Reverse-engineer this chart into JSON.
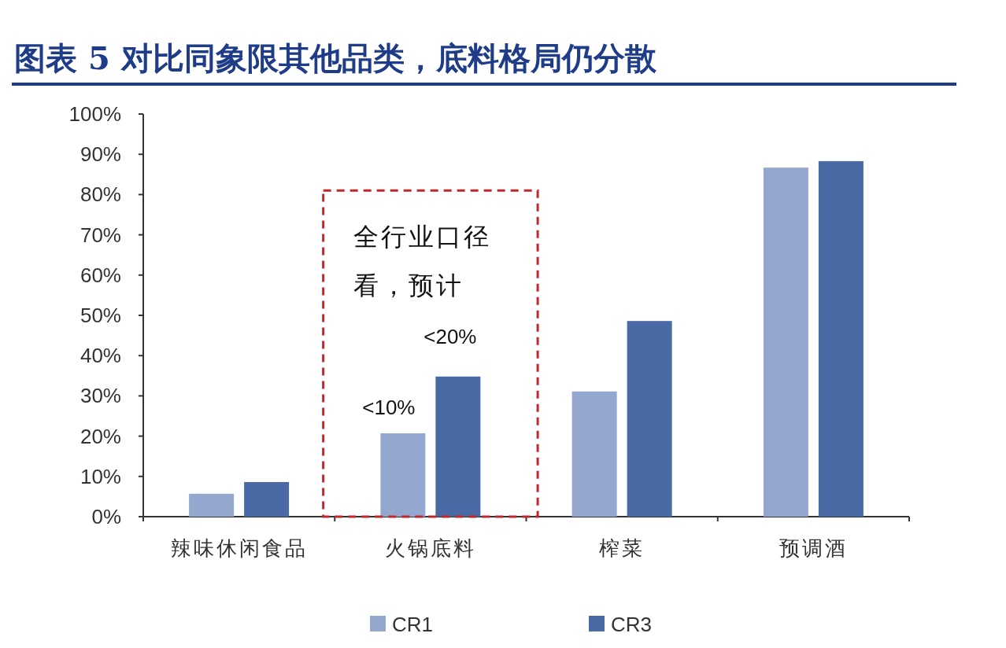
{
  "chart_data": {
    "type": "bar",
    "title": "图表 5   对比同象限其他品类，底料格局仍分散",
    "categories": [
      "辣味休闲食品",
      "火锅底料",
      "榨菜",
      "预调酒"
    ],
    "series": [
      {
        "name": "CR1",
        "color": "#94a8cf",
        "values": [
          5.7,
          20.7,
          31.1,
          86.7
        ]
      },
      {
        "name": "CR3",
        "color": "#4a6aa5",
        "values": [
          8.6,
          34.8,
          48.6,
          88.3
        ]
      }
    ],
    "ylim": [
      0,
      100
    ],
    "yticks": [
      {
        "value": 0,
        "label": "0%"
      },
      {
        "value": 10,
        "label": "10%"
      },
      {
        "value": 20,
        "label": "20%"
      },
      {
        "value": 30,
        "label": "30%"
      },
      {
        "value": 40,
        "label": "40%"
      },
      {
        "value": 50,
        "label": "50%"
      },
      {
        "value": 60,
        "label": "60%"
      },
      {
        "value": 70,
        "label": "70%"
      },
      {
        "value": 80,
        "label": "80%"
      },
      {
        "value": 90,
        "label": "90%"
      },
      {
        "value": 100,
        "label": "100%"
      }
    ],
    "annotations": [
      "全行业口径看，预计",
      "<10%",
      "<20%"
    ],
    "grid": false,
    "legend": "bottom"
  }
}
